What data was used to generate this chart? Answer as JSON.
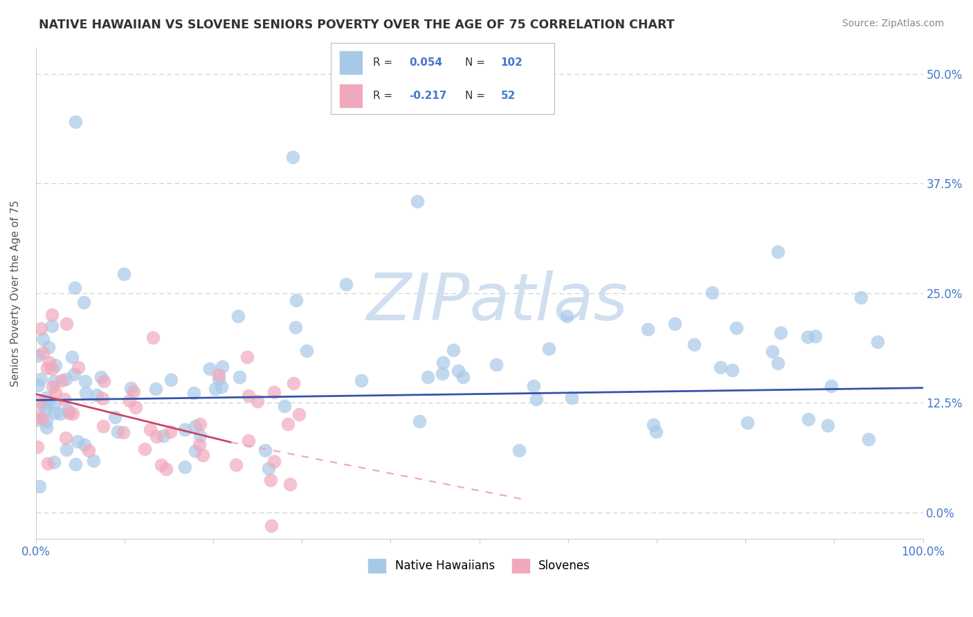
{
  "title": "NATIVE HAWAIIAN VS SLOVENE SENIORS POVERTY OVER THE AGE OF 75 CORRELATION CHART",
  "source": "Source: ZipAtlas.com",
  "ylabel": "Seniors Poverty Over the Age of 75",
  "xlim": [
    0,
    100
  ],
  "ylim": [
    -3,
    53
  ],
  "x_ticks": [
    0,
    10,
    20,
    30,
    40,
    50,
    60,
    70,
    80,
    90,
    100
  ],
  "y_ticks": [
    0,
    12.5,
    25,
    37.5,
    50
  ],
  "y_tick_labels": [
    "0.0%",
    "12.5%",
    "25.0%",
    "37.5%",
    "50.0%"
  ],
  "r_blue": "0.054",
  "n_blue": "102",
  "r_pink": "-0.217",
  "n_pink": "52",
  "color_blue": "#a8c8e8",
  "color_pink": "#f0a8bc",
  "line_blue": "#3355aa",
  "line_pink_solid": "#cc4466",
  "line_pink_dash": "#e8a8b8",
  "watermark": "ZIPatlas",
  "watermark_color": "#d0dff0",
  "title_color": "#333333",
  "axis_label_color": "#4477cc",
  "legend_text_color": "#4477cc",
  "legend_label_color": "#333333",
  "source_color": "#888888",
  "grid_color": "#cccccc",
  "spine_color": "#cccccc"
}
